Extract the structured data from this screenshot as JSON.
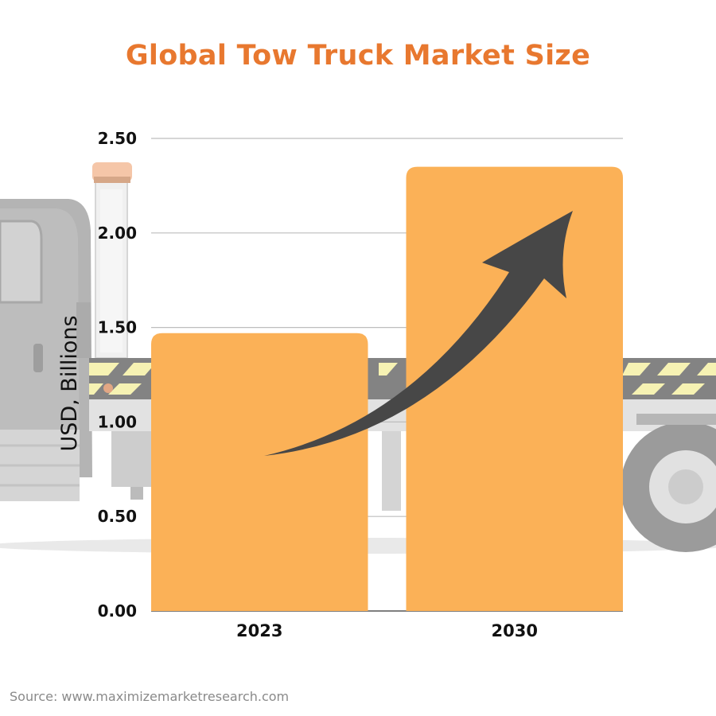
{
  "chart_data": {
    "type": "bar",
    "title": "Global Tow Truck Market Size",
    "ylabel": "USD, Billions",
    "xlabel": "",
    "categories": [
      "2023",
      "2030"
    ],
    "values": [
      1.47,
      2.35
    ],
    "ylim": [
      0,
      2.5
    ],
    "yticks": [
      "0.00",
      "0.50",
      "1.00",
      "1.50",
      "2.00",
      "2.50"
    ],
    "grid": true,
    "bar_color": "#fbb157",
    "title_color": "#e8782f",
    "arrow_color": "#474747",
    "background": "tow-truck-photo"
  },
  "source": "Source: www.maximizemarketresearch.com"
}
